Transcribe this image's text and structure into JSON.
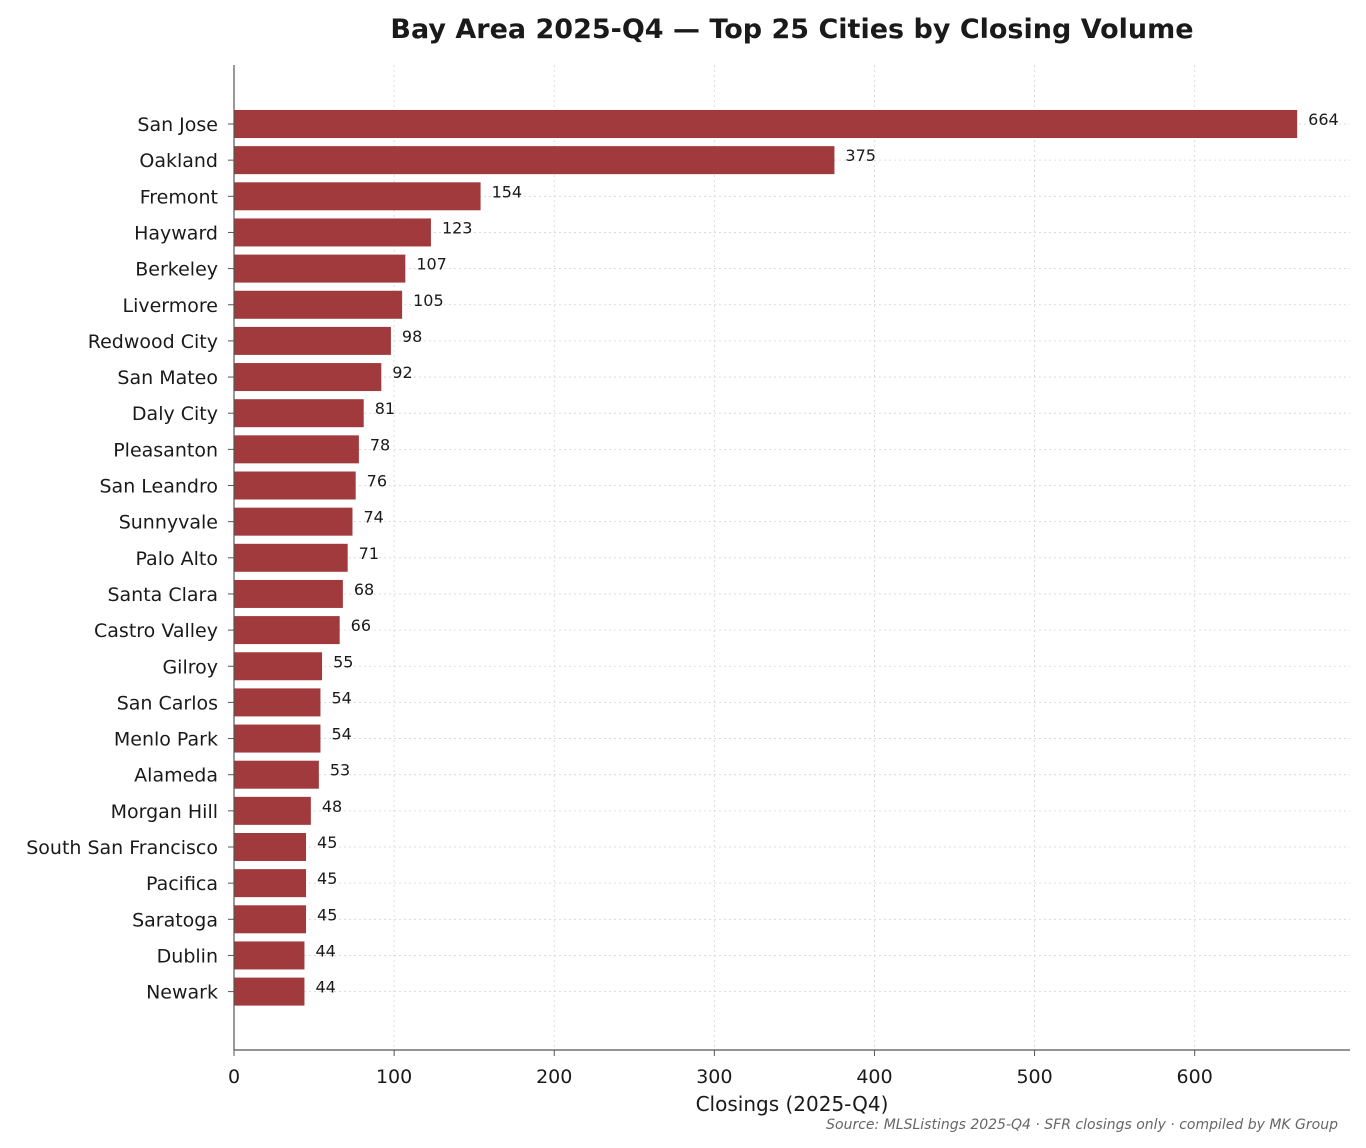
{
  "chart_data": {
    "type": "bar",
    "orientation": "horizontal",
    "title": "Bay Area 2025-Q4 — Top 25 Cities by Closing Volume",
    "xlabel": "Closings (2025-Q4)",
    "ylabel": "",
    "xlim": [
      0,
      697
    ],
    "xticks": [
      0,
      100,
      200,
      300,
      400,
      500,
      600
    ],
    "grid": true,
    "legend": "none",
    "bar_color": "#a03a3c",
    "source_note": "Source: MLSListings 2025-Q4 · SFR closings only · compiled by MK Group",
    "categories": [
      "San Jose",
      "Oakland",
      "Fremont",
      "Hayward",
      "Berkeley",
      "Livermore",
      "Redwood City",
      "San Mateo",
      "Daly City",
      "Pleasanton",
      "San Leandro",
      "Sunnyvale",
      "Palo Alto",
      "Santa Clara",
      "Castro Valley",
      "Gilroy",
      "San Carlos",
      "Menlo Park",
      "Alameda",
      "Morgan Hill",
      "South San Francisco",
      "Pacifica",
      "Saratoga",
      "Dublin",
      "Newark"
    ],
    "values": [
      664,
      375,
      154,
      123,
      107,
      105,
      98,
      92,
      81,
      78,
      76,
      74,
      71,
      68,
      66,
      55,
      54,
      54,
      53,
      48,
      45,
      45,
      45,
      44,
      44
    ]
  }
}
